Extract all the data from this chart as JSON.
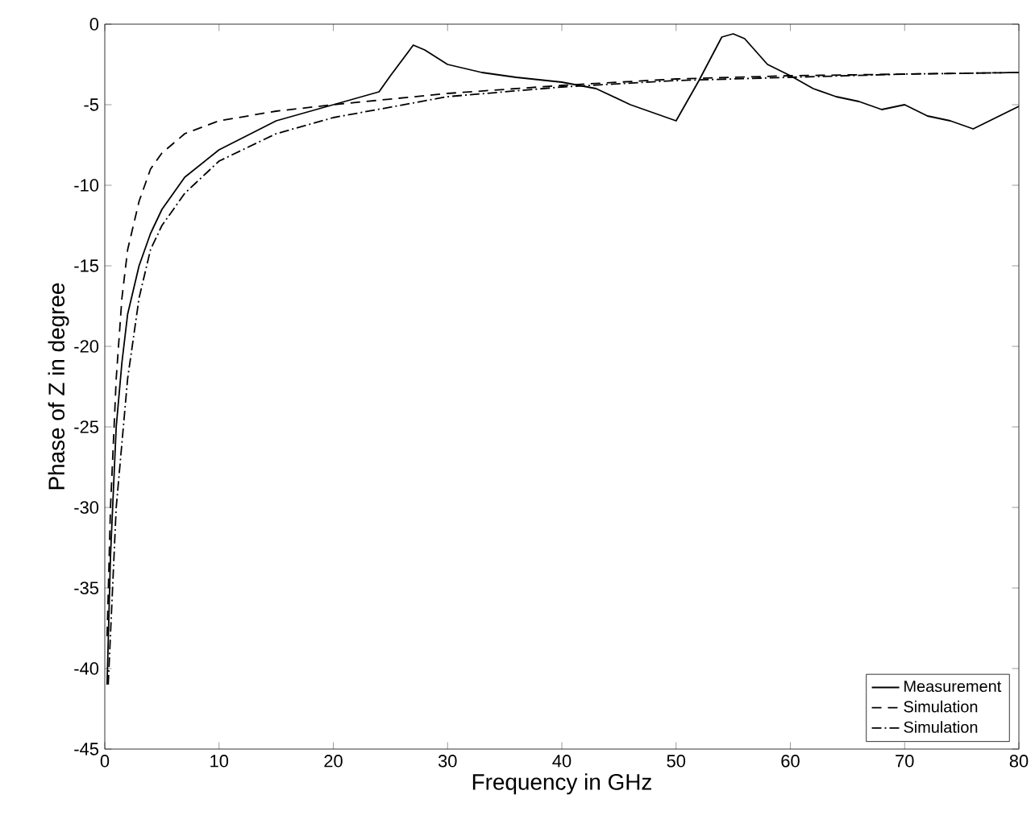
{
  "chart_data": {
    "type": "line",
    "xlabel": "Frequency in GHz",
    "ylabel": "Phase of Z in degree",
    "xlim": [
      0,
      80
    ],
    "ylim": [
      -45,
      0
    ],
    "xticks": [
      0,
      10,
      20,
      30,
      40,
      50,
      60,
      70,
      80
    ],
    "yticks": [
      -45,
      -40,
      -35,
      -30,
      -25,
      -20,
      -15,
      -10,
      -5,
      0
    ],
    "grid": false,
    "legend": "bottom right",
    "marker": "none",
    "series": [
      {
        "name": "Measurement",
        "color": "#000000",
        "line_style": "solid",
        "x": [
          0.2,
          0.5,
          1,
          1.5,
          2,
          3,
          4,
          5,
          7,
          10,
          15,
          20,
          24,
          25,
          27,
          28,
          30,
          33,
          36,
          40,
          43,
          46,
          48,
          50,
          52,
          54,
          55,
          56,
          58,
          60,
          62,
          64,
          66,
          68,
          70,
          72,
          74,
          76,
          78,
          80
        ],
        "values": [
          -41,
          -33,
          -25,
          -21,
          -18,
          -15,
          -13,
          -11.5,
          -9.5,
          -7.8,
          -6,
          -5,
          -4.2,
          -3.2,
          -1.3,
          -1.6,
          -2.5,
          -3,
          -3.3,
          -3.6,
          -4,
          -5,
          -5.5,
          -6,
          -3.5,
          -0.8,
          -0.6,
          -0.9,
          -2.5,
          -3.2,
          -4,
          -4.5,
          -4.8,
          -5.3,
          -5,
          -5.7,
          -6,
          -6.5,
          -5.8,
          -5.1
        ]
      },
      {
        "name": "Simulation",
        "color": "#000000",
        "line_style": "dashed",
        "x": [
          0.2,
          0.5,
          1,
          1.5,
          2,
          3,
          4,
          5,
          7,
          10,
          15,
          20,
          30,
          40,
          50,
          60,
          70,
          80
        ],
        "values": [
          -38,
          -30,
          -22,
          -17,
          -14,
          -11,
          -9,
          -8,
          -6.8,
          -6,
          -5.4,
          -5,
          -4.3,
          -3.8,
          -3.4,
          -3.2,
          -3.1,
          -3
        ]
      },
      {
        "name": "Simulation",
        "color": "#000000",
        "line_style": "dashdot",
        "x": [
          0.3,
          1,
          2,
          3,
          4,
          5,
          7,
          10,
          15,
          20,
          30,
          40,
          50,
          60,
          70,
          80
        ],
        "values": [
          -41,
          -30,
          -22,
          -17,
          -14,
          -12.5,
          -10.5,
          -8.5,
          -6.8,
          -5.8,
          -4.5,
          -3.9,
          -3.5,
          -3.3,
          -3.1,
          -3
        ]
      }
    ]
  }
}
